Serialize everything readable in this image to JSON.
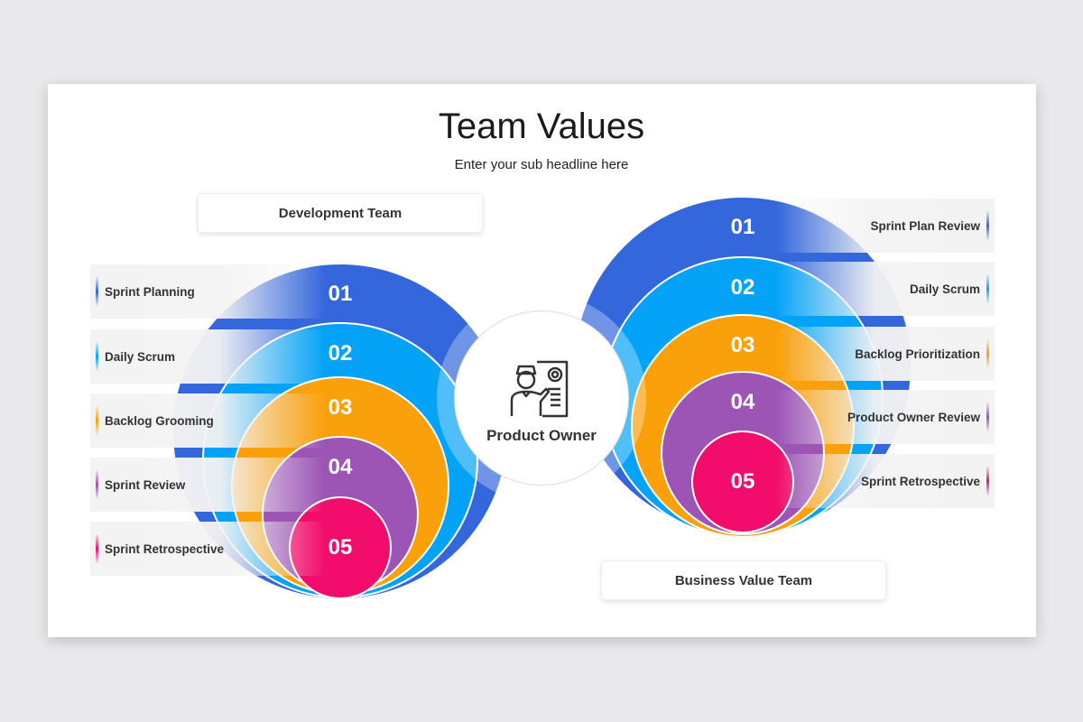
{
  "title": "Team Values",
  "subtitle": "Enter your sub headline here",
  "left_team": "Development Team",
  "right_team": "Business Value Team",
  "center": {
    "label": "Product Owner",
    "icon": "presenter-with-report-icon"
  },
  "colors": [
    "#3467dc",
    "#04a3f7",
    "#f9a00a",
    "#9c54b5",
    "#f20c6b"
  ],
  "numbers": [
    "01",
    "02",
    "03",
    "04",
    "05"
  ],
  "left_items": [
    "Sprint Planning",
    "Daily Scrum",
    "Backlog Grooming",
    "Sprint Review",
    "Sprint Retrospective"
  ],
  "right_items": [
    "Sprint Plan Review",
    "Daily Scrum",
    "Backlog Prioritization",
    "Product Owner Review",
    "Sprint Retrospective"
  ]
}
